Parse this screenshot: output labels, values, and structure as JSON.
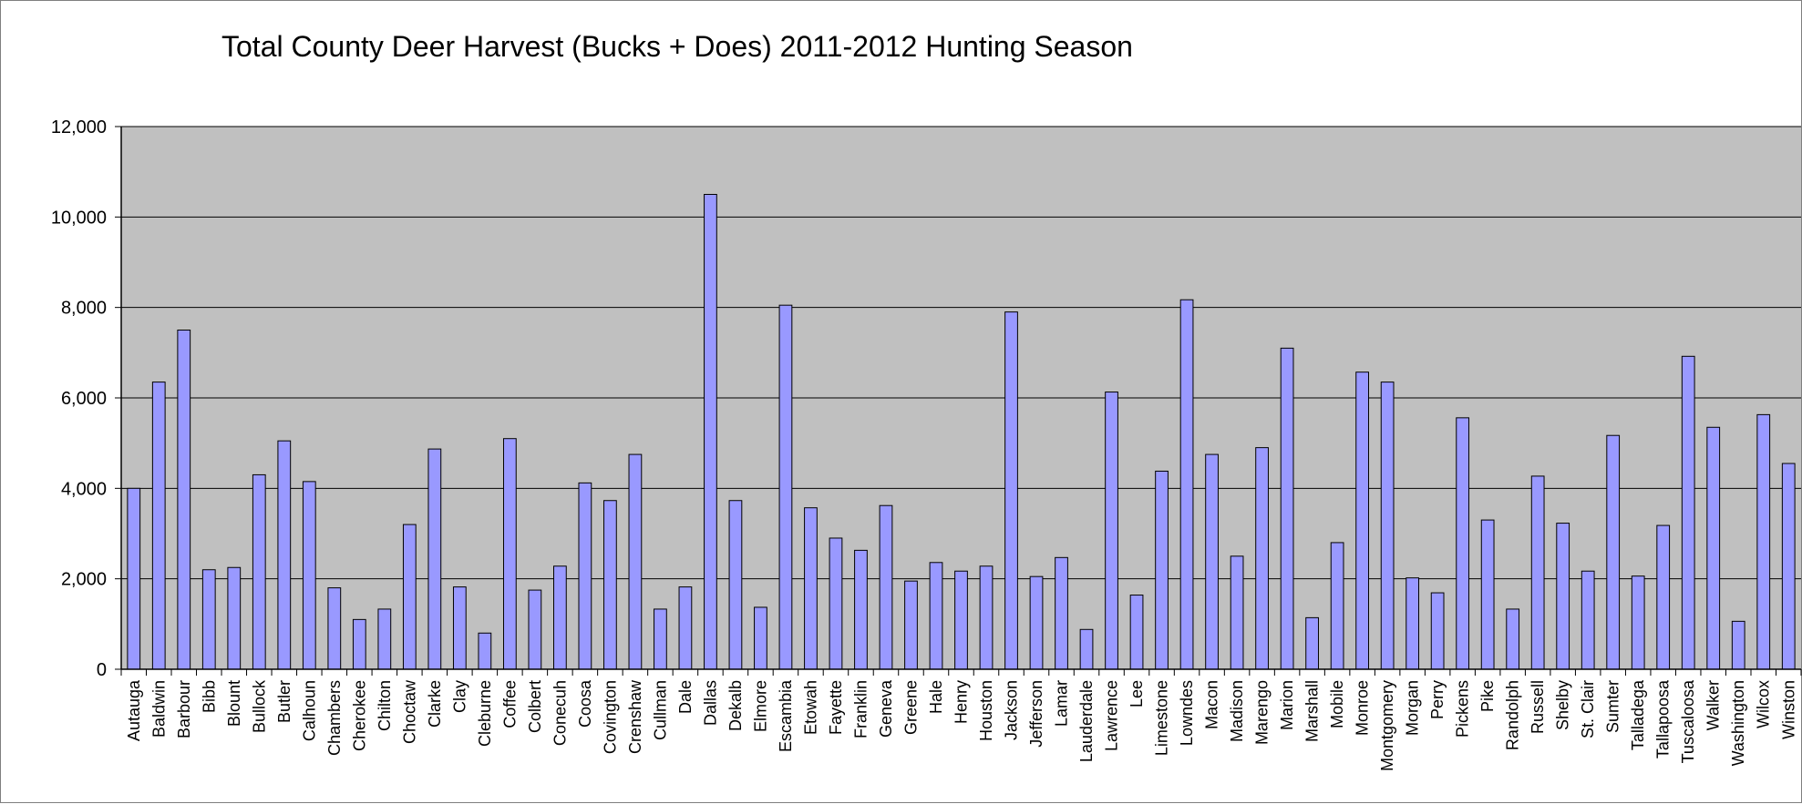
{
  "chart_data": {
    "type": "bar",
    "title": "Total County Deer Harvest (Bucks + Does) 2011-2012 Hunting Season",
    "xlabel": "",
    "ylabel": "",
    "ylim": [
      0,
      12000
    ],
    "yticks": [
      0,
      2000,
      4000,
      6000,
      8000,
      10000,
      12000
    ],
    "ytick_labels": [
      "0",
      "2,000",
      "4,000",
      "6,000",
      "8,000",
      "10,000",
      "12,000"
    ],
    "grid": true,
    "legend": "none",
    "colors": {
      "bar": "#9999ff",
      "bar_edge": "#000000",
      "plot_bg": "#c0c0c0",
      "grid": "#000000"
    },
    "categories": [
      "Autauga",
      "Baldwin",
      "Barbour",
      "Bibb",
      "Blount",
      "Bullock",
      "Butler",
      "Calhoun",
      "Chambers",
      "Cherokee",
      "Chilton",
      "Choctaw",
      "Clarke",
      "Clay",
      "Cleburne",
      "Coffee",
      "Colbert",
      "Conecuh",
      "Coosa",
      "Covington",
      "Crenshaw",
      "Cullman",
      "Dale",
      "Dallas",
      "Dekalb",
      "Elmore",
      "Escambia",
      "Etowah",
      "Fayette",
      "Franklin",
      "Geneva",
      "Greene",
      "Hale",
      "Henry",
      "Houston",
      "Jackson",
      "Jefferson",
      "Lamar",
      "Lauderdale",
      "Lawrence",
      "Lee",
      "Limestone",
      "Lowndes",
      "Macon",
      "Madison",
      "Marengo",
      "Marion",
      "Marshall",
      "Mobile",
      "Monroe",
      "Montgomery",
      "Morgan",
      "Perry",
      "Pickens",
      "Pike",
      "Randolph",
      "Russell",
      "Shelby",
      "St. Clair",
      "Sumter",
      "Talladega",
      "Tallapoosa",
      "Tuscaloosa",
      "Walker",
      "Washington",
      "Wilcox",
      "Winston"
    ],
    "values": [
      4000,
      6350,
      7500,
      2200,
      2250,
      4300,
      5050,
      4150,
      1800,
      1100,
      1330,
      3200,
      4870,
      1820,
      800,
      5100,
      1750,
      2280,
      4120,
      3730,
      4750,
      1330,
      1820,
      10500,
      3730,
      1370,
      8050,
      3570,
      2900,
      2630,
      3620,
      1950,
      2360,
      2170,
      2280,
      7900,
      2050,
      2470,
      880,
      6130,
      1640,
      4380,
      8170,
      4750,
      2500,
      4900,
      7100,
      1140,
      2800,
      6570,
      6350,
      2020,
      1690,
      5560,
      3300,
      1330,
      4270,
      3230,
      2170,
      5170,
      2060,
      3180,
      6920,
      5350,
      1060,
      5630,
      4550
    ]
  }
}
